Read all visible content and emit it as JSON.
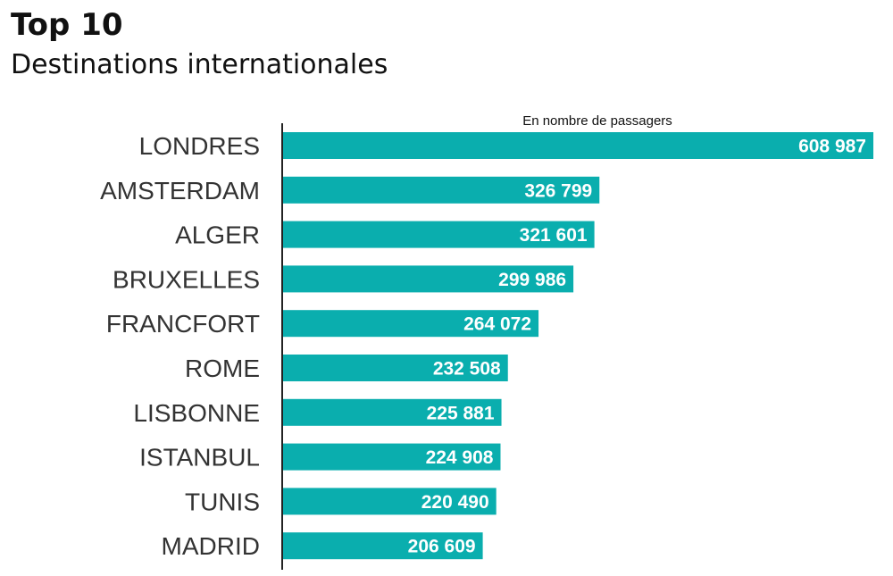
{
  "title": "Top 10",
  "subtitle": "Destinations internationales",
  "colors": {
    "bar": "#0aaeae",
    "axis": "#222222"
  },
  "chart_data": {
    "type": "bar",
    "orientation": "horizontal",
    "title": "Top 10",
    "subtitle": "Destinations internationales",
    "unit_label": "En nombre de passagers",
    "categories": [
      "LONDRES",
      "AMSTERDAM",
      "ALGER",
      "BRUXELLES",
      "FRANCFORT",
      "ROME",
      "LISBONNE",
      "ISTANBUL",
      "TUNIS",
      "MADRID"
    ],
    "values": [
      608987,
      326799,
      321601,
      299986,
      264072,
      232508,
      225881,
      224908,
      220490,
      206609
    ],
    "value_labels": [
      "608 987",
      "326 799",
      "321 601",
      "299 986",
      "264 072",
      "232 508",
      "225 881",
      "224 908",
      "220 490",
      "206 609"
    ],
    "xlim": [
      0,
      608987
    ],
    "grid": false,
    "legend": "none"
  }
}
